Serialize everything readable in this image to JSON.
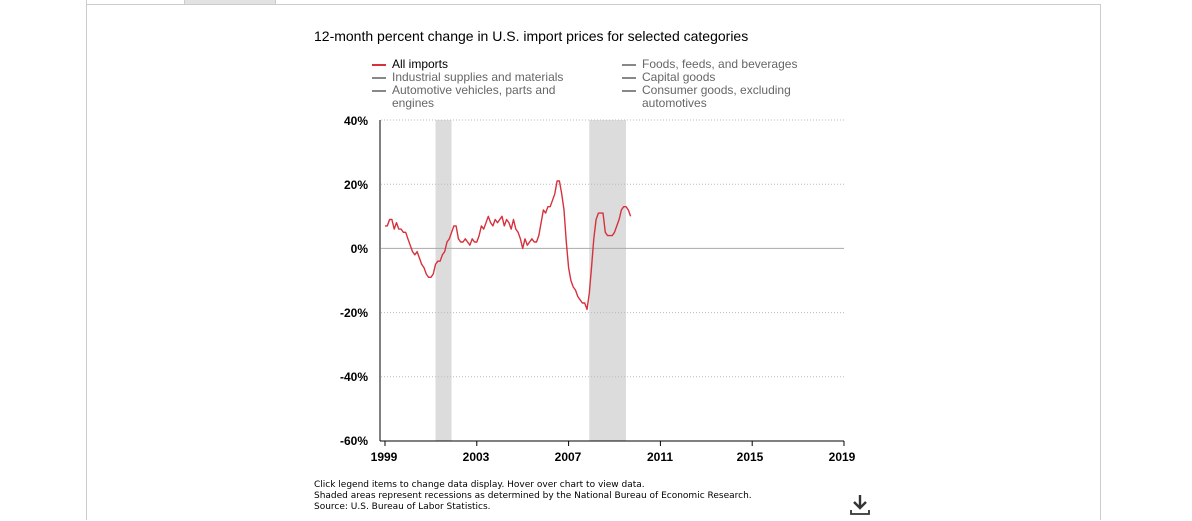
{
  "chart_data": {
    "type": "line",
    "title": "12-month percent change in U.S. import prices for selected categories",
    "xlabel": "",
    "ylabel": "",
    "xlim": [
      1999,
      2019
    ],
    "ylim": [
      -60,
      40
    ],
    "x_ticks": [
      "1999",
      "2003",
      "2007",
      "2011",
      "2015",
      "2019"
    ],
    "y_ticks": [
      "40%",
      "20%",
      "0%",
      "-20%",
      "-40%",
      "-60%"
    ],
    "grid": "dotted horizontal at each y tick",
    "legend_placement": "top",
    "legend": [
      {
        "label": "All imports",
        "active": true,
        "color": "#d6313d"
      },
      {
        "label": "Foods, feeds, and beverages",
        "active": false,
        "color": "#888888"
      },
      {
        "label": "Industrial supplies and materials",
        "active": false,
        "color": "#888888"
      },
      {
        "label": "Capital goods",
        "active": false,
        "color": "#888888"
      },
      {
        "label": "Automotive vehicles, parts and engines",
        "active": false,
        "color": "#888888"
      },
      {
        "label": "Consumer goods, excluding automotives",
        "active": false,
        "color": "#888888"
      }
    ],
    "recessions": [
      [
        2001.2,
        2001.9
      ],
      [
        2007.9,
        2009.5
      ]
    ],
    "series": [
      {
        "name": "All imports",
        "color": "#d6313d",
        "points": [
          [
            1999.0,
            7
          ],
          [
            1999.1,
            7
          ],
          [
            1999.2,
            9
          ],
          [
            1999.3,
            9
          ],
          [
            1999.4,
            6
          ],
          [
            1999.5,
            8
          ],
          [
            1999.6,
            6
          ],
          [
            1999.7,
            6
          ],
          [
            1999.8,
            5
          ],
          [
            1999.9,
            5
          ],
          [
            2000.0,
            3
          ],
          [
            2000.1,
            1
          ],
          [
            2000.2,
            -1
          ],
          [
            2000.3,
            -2
          ],
          [
            2000.4,
            -1
          ],
          [
            2000.5,
            -3
          ],
          [
            2000.6,
            -5
          ],
          [
            2000.7,
            -6
          ],
          [
            2000.8,
            -8
          ],
          [
            2000.9,
            -9
          ],
          [
            2001.0,
            -9
          ],
          [
            2001.1,
            -8
          ],
          [
            2001.2,
            -5
          ],
          [
            2001.3,
            -4
          ],
          [
            2001.4,
            -4
          ],
          [
            2001.5,
            -2
          ],
          [
            2001.6,
            -1
          ],
          [
            2001.7,
            2
          ],
          [
            2001.8,
            3
          ],
          [
            2001.9,
            5
          ],
          [
            2002.0,
            7
          ],
          [
            2002.1,
            7
          ],
          [
            2002.2,
            3
          ],
          [
            2002.3,
            2
          ],
          [
            2002.4,
            2
          ],
          [
            2002.5,
            3
          ],
          [
            2002.6,
            2
          ],
          [
            2002.7,
            1
          ],
          [
            2002.8,
            3
          ],
          [
            2002.9,
            2
          ],
          [
            2003.0,
            2
          ],
          [
            2003.1,
            4
          ],
          [
            2003.2,
            7
          ],
          [
            2003.3,
            6
          ],
          [
            2003.4,
            8
          ],
          [
            2003.5,
            10
          ],
          [
            2003.6,
            8
          ],
          [
            2003.7,
            7
          ],
          [
            2003.8,
            9
          ],
          [
            2003.9,
            8
          ],
          [
            2004.0,
            9
          ],
          [
            2004.1,
            10
          ],
          [
            2004.2,
            7
          ],
          [
            2004.3,
            9
          ],
          [
            2004.4,
            8
          ],
          [
            2004.5,
            6
          ],
          [
            2004.6,
            9
          ],
          [
            2004.7,
            6
          ],
          [
            2004.8,
            5
          ],
          [
            2004.9,
            3
          ],
          [
            2005.0,
            0
          ],
          [
            2005.1,
            3
          ],
          [
            2005.2,
            1
          ],
          [
            2005.3,
            2
          ],
          [
            2005.4,
            3
          ],
          [
            2005.5,
            2
          ],
          [
            2005.6,
            2
          ],
          [
            2005.7,
            4
          ],
          [
            2005.8,
            8
          ],
          [
            2005.9,
            12
          ],
          [
            2006.0,
            11
          ],
          [
            2006.1,
            13
          ],
          [
            2006.2,
            13
          ],
          [
            2006.3,
            15
          ],
          [
            2006.4,
            17
          ],
          [
            2006.5,
            21
          ],
          [
            2006.6,
            21
          ],
          [
            2006.7,
            17
          ],
          [
            2006.8,
            12
          ],
          [
            2006.9,
            2
          ],
          [
            2007.0,
            -6
          ],
          [
            2007.1,
            -10
          ],
          [
            2007.2,
            -12
          ],
          [
            2007.3,
            -13
          ],
          [
            2007.4,
            -15
          ],
          [
            2007.5,
            -16
          ],
          [
            2007.6,
            -17
          ],
          [
            2007.7,
            -17
          ],
          [
            2007.8,
            -19
          ],
          [
            2007.9,
            -14
          ],
          [
            2008.0,
            -6
          ],
          [
            2008.1,
            3
          ],
          [
            2008.2,
            9
          ],
          [
            2008.3,
            11
          ],
          [
            2008.4,
            11
          ],
          [
            2008.5,
            11
          ],
          [
            2008.6,
            5
          ],
          [
            2008.7,
            4
          ],
          [
            2008.8,
            4
          ],
          [
            2008.9,
            4
          ],
          [
            2009.0,
            5
          ],
          [
            2009.1,
            7
          ],
          [
            2009.2,
            9
          ],
          [
            2009.3,
            12
          ],
          [
            2009.4,
            13
          ],
          [
            2009.5,
            13
          ],
          [
            2009.6,
            12
          ],
          [
            2009.7,
            10
          ]
        ]
      }
    ]
  },
  "notes": [
    "Click legend items to change data display. Hover over chart to view data.",
    "Shaded areas represent recessions as determined by the National Bureau of Economic Research.",
    "Source: U.S. Bureau of Labor Statistics."
  ],
  "download_icon": "download-icon"
}
